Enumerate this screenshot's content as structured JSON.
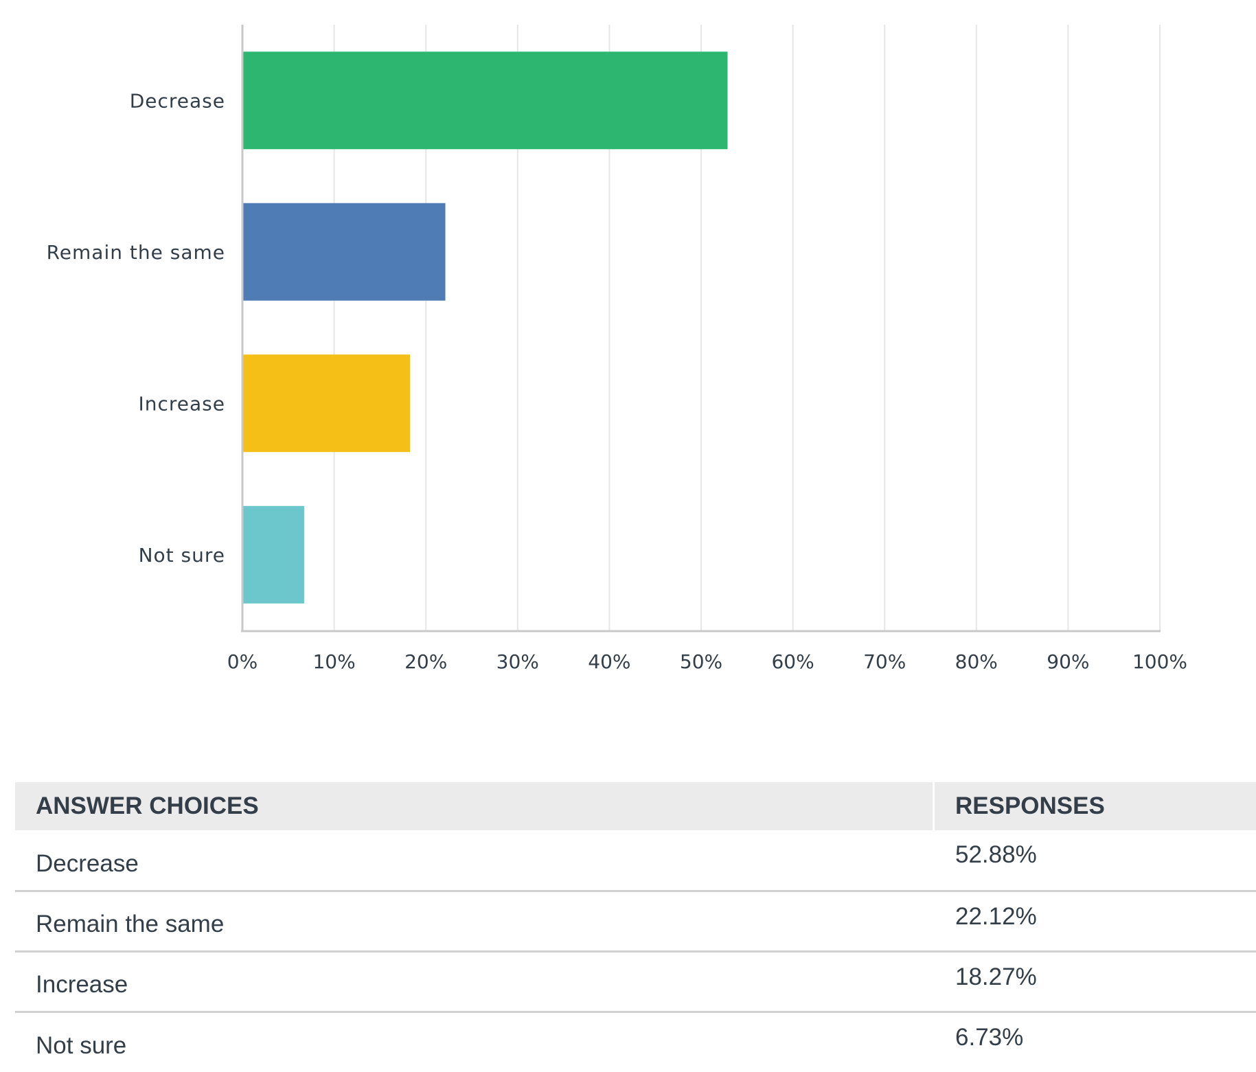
{
  "chart_data": {
    "type": "bar",
    "orientation": "horizontal",
    "categories": [
      "Decrease",
      "Remain the same",
      "Increase",
      "Not sure"
    ],
    "values": [
      52.88,
      22.12,
      18.27,
      6.73
    ],
    "colors": [
      "#2db670",
      "#507cb6",
      "#f6bf17",
      "#6bc7cc"
    ],
    "xlim": [
      0,
      100
    ],
    "x_ticks": [
      "0%",
      "10%",
      "20%",
      "30%",
      "40%",
      "50%",
      "60%",
      "70%",
      "80%",
      "90%",
      "100%"
    ],
    "grid": true,
    "grid_color": "#e6e6e6",
    "title": "",
    "xlabel": "",
    "ylabel": ""
  },
  "table": {
    "headers": [
      "ANSWER CHOICES",
      "RESPONSES"
    ],
    "rows": [
      {
        "choice": "Decrease",
        "response": "52.88%"
      },
      {
        "choice": "Remain the same",
        "response": "22.12%"
      },
      {
        "choice": "Increase",
        "response": "18.27%"
      },
      {
        "choice": "Not sure",
        "response": "6.73%"
      }
    ]
  }
}
